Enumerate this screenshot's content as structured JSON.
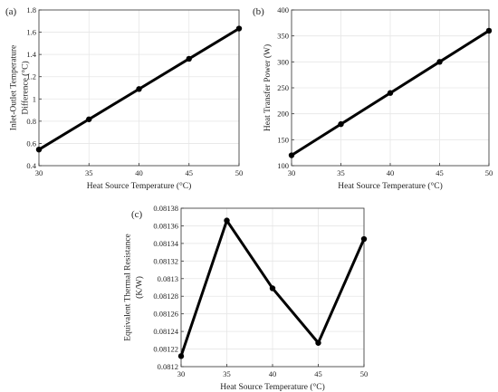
{
  "chart_data": [
    {
      "panel": "(a)",
      "type": "line",
      "x": [
        30,
        35,
        40,
        45,
        50
      ],
      "values": [
        0.545,
        0.817,
        1.089,
        1.361,
        1.633
      ],
      "xlabel": "Heat Source Temperature (°C)",
      "ylabel_lines": [
        "Inlet-Outlet Temperature",
        "Difference (°C)"
      ],
      "xlim": [
        30,
        50
      ],
      "ylim": [
        0.4,
        1.8
      ],
      "xticks": [
        "30",
        "35",
        "40",
        "45",
        "50"
      ],
      "yticks": [
        "0.4",
        "0.6",
        "0.8",
        "1",
        "1.2",
        "1.4",
        "1.6",
        "1.8"
      ],
      "grid": true,
      "line_color": "#000000"
    },
    {
      "panel": "(b)",
      "type": "line",
      "x": [
        30,
        35,
        40,
        45,
        50
      ],
      "values": [
        120,
        180,
        240,
        300,
        360
      ],
      "xlabel": "Heat Source Temperature (°C)",
      "ylabel_lines": [
        "Heat Transfer Power (W)"
      ],
      "xlim": [
        30,
        50
      ],
      "ylim": [
        100,
        400
      ],
      "xticks": [
        "30",
        "35",
        "40",
        "45",
        "50"
      ],
      "yticks": [
        "100",
        "150",
        "200",
        "250",
        "300",
        "350",
        "400"
      ],
      "grid": true,
      "line_color": "#000000"
    },
    {
      "panel": "(c)",
      "type": "line",
      "x": [
        30,
        35,
        40,
        45,
        50
      ],
      "values": [
        0.081212,
        0.081366,
        0.081289,
        0.081227,
        0.081345
      ],
      "xlabel": "Heat Source Temperature (°C)",
      "ylabel_lines": [
        "Equivalent Thermal Resistance",
        "(K/W)"
      ],
      "xlim": [
        30,
        50
      ],
      "ylim": [
        0.0812,
        0.08138
      ],
      "xticks": [
        "30",
        "35",
        "40",
        "45",
        "50"
      ],
      "yticks": [
        "0.0812",
        "0.08122",
        "0.08124",
        "0.08126",
        "0.08128",
        "0.0813",
        "0.08132",
        "0.08134",
        "0.08136",
        "0.08138"
      ],
      "grid": true,
      "line_color": "#000000"
    }
  ]
}
